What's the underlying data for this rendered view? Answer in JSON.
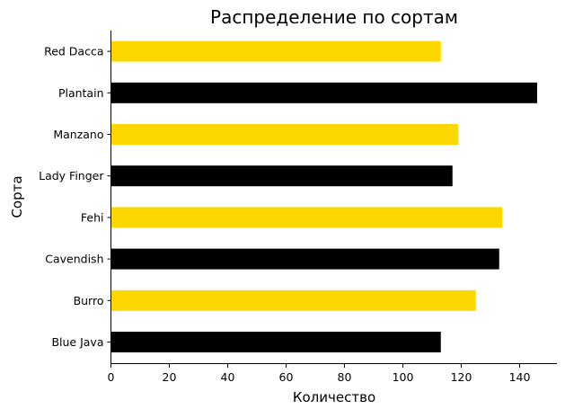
{
  "chart_data": {
    "type": "bar",
    "orientation": "horizontal",
    "title": "Распределение по сортам",
    "xlabel": "Количество",
    "ylabel": "Сорта",
    "categories": [
      "Blue Java",
      "Burro",
      "Cavendish",
      "Fehi",
      "Lady Finger",
      "Manzano",
      "Plantain",
      "Red Dacca"
    ],
    "values": [
      113,
      125,
      133,
      134,
      117,
      119,
      146,
      113
    ],
    "bar_colors": [
      "#000000",
      "#FFD700",
      "#000000",
      "#FFD700",
      "#000000",
      "#FFD700",
      "#000000",
      "#FFD700"
    ],
    "xlim": [
      0,
      153
    ],
    "xticks": [
      0,
      20,
      40,
      60,
      80,
      100,
      120,
      140
    ],
    "grid": false,
    "legend": "none"
  }
}
